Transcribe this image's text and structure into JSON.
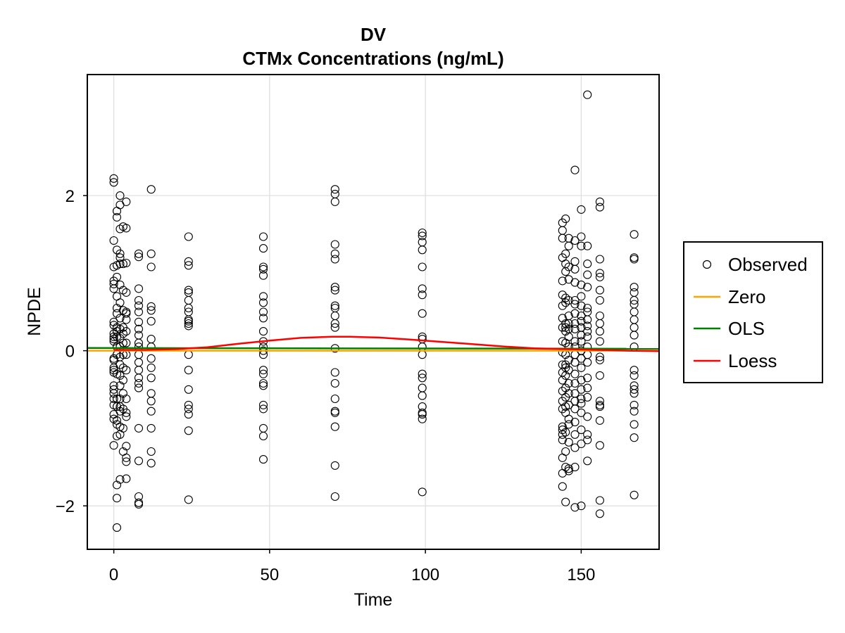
{
  "chart_data": {
    "type": "scatter",
    "title": "DV",
    "subtitle": "CTMx Concentrations (ng/mL)",
    "xlabel": "Time",
    "ylabel": "NPDE",
    "xlim": [
      -8.5,
      175
    ],
    "ylim": [
      -2.56,
      3.56
    ],
    "xticks": [
      0,
      50,
      100,
      150
    ],
    "yticks": [
      -2,
      0,
      2
    ],
    "xtick_labels": [
      "0",
      "50",
      "100",
      "150"
    ],
    "ytick_labels": [
      "−2",
      "0",
      "2"
    ],
    "grid": true,
    "legend_position": "right",
    "legend": [
      "Observed",
      "Zero",
      "OLS",
      "Loess"
    ],
    "colors": {
      "observed": "#000000",
      "zero": "#ffa500",
      "ols": "#008000",
      "loess": "#ff0000",
      "grid": "#dddddd"
    },
    "series": [
      {
        "name": "Observed",
        "type": "scatter",
        "x": [
          0,
          0,
          0,
          0,
          0,
          0,
          0,
          0,
          0,
          0,
          0,
          0,
          0,
          0,
          0,
          0,
          0,
          0,
          0,
          0,
          0,
          0,
          0,
          0,
          0,
          0,
          1,
          1,
          1,
          1,
          1,
          1,
          1,
          1,
          1,
          1,
          1,
          1,
          1,
          1,
          1,
          1,
          1,
          1,
          1,
          1,
          1,
          1,
          2,
          2,
          2,
          2,
          2,
          2,
          2,
          2,
          2,
          2,
          2,
          2,
          2,
          2,
          2,
          2,
          2,
          2,
          2,
          2,
          2,
          2,
          3,
          3,
          3,
          3,
          3,
          3,
          3,
          3,
          3,
          3,
          3,
          3,
          3,
          3,
          4,
          4,
          4,
          4,
          4,
          4,
          4,
          4,
          4,
          4,
          4,
          4,
          4,
          4,
          4,
          4,
          4,
          4,
          8,
          8,
          8,
          8,
          8,
          8,
          8,
          8,
          8,
          8,
          8,
          8,
          8,
          8,
          8,
          8,
          8,
          8,
          8,
          8,
          8,
          8,
          12,
          12,
          12,
          12,
          12,
          12,
          12,
          12,
          12,
          12,
          12,
          12,
          12,
          12,
          12,
          12,
          12,
          24,
          24,
          24,
          24,
          24,
          24,
          24,
          24,
          24,
          24,
          24,
          24,
          24,
          24,
          24,
          24,
          24,
          24,
          24,
          24,
          48,
          48,
          48,
          48,
          48,
          48,
          48,
          48,
          48,
          48,
          48,
          48,
          48,
          48,
          48,
          48,
          48,
          48,
          48,
          48,
          48,
          48,
          48,
          71,
          71,
          71,
          71,
          71,
          71,
          71,
          71,
          71,
          71,
          71,
          71,
          71,
          71,
          71,
          71,
          71,
          71,
          71,
          71,
          71,
          71,
          99,
          99,
          99,
          99,
          99,
          99,
          99,
          99,
          99,
          99,
          99,
          99,
          99,
          99,
          99,
          99,
          99,
          99,
          99,
          99,
          99,
          144,
          144,
          144,
          144,
          144,
          144,
          144,
          144,
          144,
          144,
          144,
          144,
          144,
          144,
          144,
          144,
          144,
          144,
          144,
          144,
          144,
          144,
          144,
          144,
          145,
          145,
          145,
          145,
          145,
          145,
          145,
          145,
          145,
          145,
          145,
          145,
          145,
          145,
          145,
          145,
          145,
          145,
          145,
          145,
          145,
          145,
          146,
          146,
          146,
          146,
          146,
          146,
          146,
          146,
          146,
          146,
          146,
          146,
          146,
          146,
          146,
          146,
          146,
          146,
          146,
          146,
          148,
          148,
          148,
          148,
          148,
          148,
          148,
          148,
          148,
          148,
          148,
          148,
          148,
          148,
          148,
          148,
          148,
          148,
          148,
          148,
          148,
          148,
          148,
          148,
          150,
          150,
          150,
          150,
          150,
          150,
          150,
          150,
          150,
          150,
          150,
          150,
          150,
          150,
          150,
          150,
          150,
          150,
          150,
          150,
          150,
          150,
          152,
          152,
          152,
          152,
          152,
          152,
          152,
          152,
          152,
          152,
          152,
          152,
          152,
          152,
          152,
          152,
          152,
          152,
          152,
          152,
          152,
          156,
          156,
          156,
          156,
          156,
          156,
          156,
          156,
          156,
          156,
          156,
          156,
          156,
          156,
          156,
          156,
          156,
          156,
          156,
          156,
          156,
          167,
          167,
          167,
          167,
          167,
          167,
          167,
          167,
          167,
          167,
          167,
          167,
          167,
          167,
          167,
          167,
          167,
          167,
          167,
          167,
          167,
          167
        ],
        "y": [
          2.22,
          2.17,
          1.42,
          1.08,
          0.9,
          0.86,
          0.8,
          0.37,
          0.33,
          0.22,
          0.18,
          0.15,
          0.12,
          -0.1,
          -0.12,
          -0.22,
          -0.25,
          -0.28,
          -0.45,
          -0.5,
          -0.55,
          -0.62,
          -0.7,
          -0.82,
          -0.88,
          -1.22,
          1.8,
          1.72,
          1.3,
          1.1,
          0.95,
          0.7,
          0.48,
          0.3,
          0.18,
          0.05,
          -0.05,
          -0.3,
          -0.62,
          -0.72,
          -0.9,
          -1.1,
          -1.73,
          -1.9,
          -2.28,
          -0.95,
          0.55,
          0.25,
          2.0,
          1.88,
          1.57,
          1.25,
          1.2,
          1.12,
          0.85,
          0.62,
          0.42,
          0.28,
          0.16,
          0.05,
          -0.08,
          -0.18,
          -0.32,
          -0.45,
          -0.62,
          -0.72,
          -0.78,
          -0.98,
          -1.08,
          -1.66,
          1.6,
          1.12,
          0.78,
          0.52,
          0.3,
          0.22,
          0.1,
          -0.05,
          -0.22,
          -0.38,
          -0.55,
          -0.75,
          -1.0,
          -1.3,
          1.92,
          1.58,
          1.13,
          0.75,
          0.5,
          0.48,
          0.4,
          0.25,
          0.1,
          -0.05,
          -0.25,
          -0.62,
          -0.8,
          -0.85,
          -1.23,
          -1.38,
          -1.43,
          -1.65,
          1.25,
          1.21,
          0.8,
          0.58,
          0.5,
          0.37,
          0.28,
          0.2,
          0.1,
          0.05,
          -0.05,
          -0.15,
          -0.25,
          -0.35,
          -0.42,
          -0.48,
          -1.0,
          -1.42,
          -1.88,
          -1.96,
          -1.98,
          0.65,
          2.08,
          1.25,
          1.08,
          0.57,
          0.52,
          0.38,
          0.15,
          0.05,
          -0.1,
          -0.22,
          -0.35,
          -0.55,
          -0.65,
          -0.78,
          -1.0,
          -1.3,
          -1.45,
          1.47,
          1.15,
          1.1,
          0.78,
          0.75,
          0.65,
          0.55,
          0.5,
          0.4,
          0.38,
          0.35,
          0.32,
          -0.05,
          -0.25,
          -0.5,
          -0.7,
          -0.75,
          -0.82,
          -1.03,
          -1.92,
          1.47,
          1.32,
          1.08,
          1.05,
          0.97,
          0.7,
          0.62,
          0.5,
          0.42,
          0.25,
          0.12,
          0.05,
          0.0,
          -0.05,
          -0.25,
          -0.3,
          -0.42,
          -0.45,
          -0.7,
          -0.75,
          -1.0,
          -1.1,
          -1.4,
          2.08,
          2.02,
          1.92,
          1.37,
          1.25,
          1.18,
          0.82,
          0.78,
          0.58,
          0.55,
          0.45,
          0.35,
          0.3,
          0.03,
          -0.28,
          -0.42,
          -0.62,
          -0.8,
          -0.98,
          -1.48,
          -1.88,
          -0.78,
          1.52,
          1.48,
          1.4,
          1.3,
          1.08,
          0.8,
          0.72,
          0.48,
          0.18,
          0.15,
          0.05,
          -0.05,
          -0.3,
          -0.35,
          -0.48,
          -0.58,
          -0.72,
          -0.8,
          -0.82,
          -0.88,
          -1.82,
          1.65,
          1.55,
          1.45,
          1.2,
          0.9,
          0.72,
          0.58,
          0.42,
          0.3,
          0.12,
          -0.02,
          -0.18,
          -0.28,
          -0.38,
          -0.52,
          -0.65,
          -0.75,
          -0.98,
          -1.02,
          -1.15,
          -1.38,
          -1.58,
          -1.75,
          -1.08,
          1.7,
          1.25,
          1.12,
          1.02,
          0.68,
          0.62,
          0.35,
          0.3,
          0.25,
          0.1,
          -0.05,
          -0.22,
          -0.32,
          -0.48,
          -0.6,
          -0.72,
          -0.8,
          -1.05,
          -1.3,
          -1.5,
          -1.95,
          -0.18,
          1.45,
          1.35,
          1.08,
          0.92,
          0.65,
          0.45,
          0.35,
          0.28,
          0.18,
          0.05,
          -0.12,
          -0.25,
          -0.42,
          -0.55,
          -0.7,
          -0.88,
          -0.95,
          -1.18,
          -1.52,
          -1.55,
          2.33,
          1.42,
          1.15,
          1.05,
          0.88,
          0.65,
          0.6,
          0.48,
          0.35,
          0.28,
          0.12,
          0.05,
          -0.05,
          -0.15,
          -0.3,
          -0.42,
          -0.55,
          -0.65,
          -0.75,
          -0.92,
          -1.08,
          -1.25,
          -1.5,
          -2.02,
          1.82,
          1.47,
          1.35,
          0.85,
          0.7,
          0.58,
          0.45,
          0.38,
          0.3,
          0.2,
          0.12,
          0.0,
          -0.1,
          -0.22,
          -0.38,
          -0.5,
          -0.62,
          -0.68,
          -0.8,
          -1.02,
          -1.2,
          -2.0,
          3.3,
          1.35,
          1.12,
          0.98,
          0.82,
          0.55,
          0.5,
          0.4,
          0.32,
          0.25,
          0.18,
          0.05,
          -0.05,
          -0.15,
          -0.35,
          -0.48,
          -0.6,
          -0.85,
          -1.08,
          -1.15,
          -1.42,
          1.92,
          1.85,
          1.18,
          1.0,
          0.95,
          0.78,
          0.65,
          0.45,
          0.35,
          0.25,
          0.12,
          -0.08,
          -0.12,
          -0.32,
          -0.65,
          -0.7,
          -0.72,
          -0.9,
          -1.22,
          -1.93,
          -2.1,
          1.5,
          1.2,
          1.18,
          0.82,
          0.75,
          0.65,
          0.6,
          0.5,
          0.4,
          0.3,
          0.2,
          0.05,
          -0.25,
          -0.32,
          -0.45,
          -0.5,
          -0.55,
          -0.7,
          -0.78,
          -0.95,
          -1.12,
          -1.86
        ]
      },
      {
        "name": "Zero",
        "type": "line",
        "x": [
          -8.5,
          175
        ],
        "y": [
          0,
          0
        ]
      },
      {
        "name": "OLS",
        "type": "line",
        "x": [
          -8.5,
          175
        ],
        "y": [
          0.035,
          0.025
        ]
      },
      {
        "name": "Loess",
        "type": "line",
        "x": [
          0,
          10,
          20,
          30,
          40,
          50,
          60,
          70,
          76,
          85,
          95,
          105,
          115,
          125,
          135,
          145,
          155,
          165,
          175
        ],
        "y": [
          0.01,
          0.01,
          0.02,
          0.045,
          0.09,
          0.13,
          0.165,
          0.18,
          0.18,
          0.17,
          0.145,
          0.115,
          0.085,
          0.055,
          0.03,
          0.02,
          0.01,
          0.0,
          -0.005
        ]
      }
    ]
  }
}
